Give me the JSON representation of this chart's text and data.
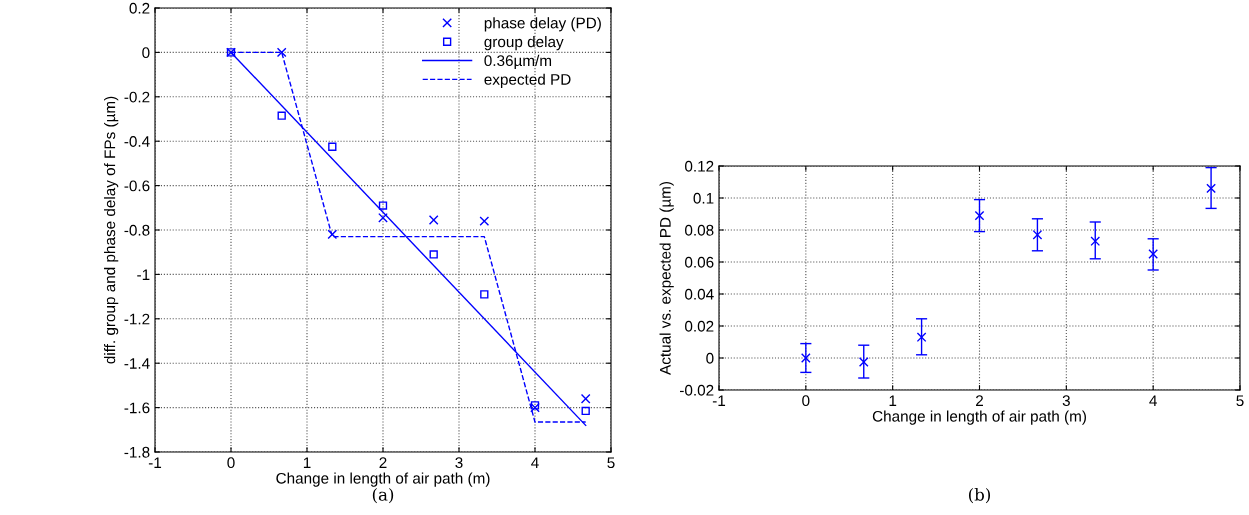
{
  "chart_data": [
    {
      "type": "scatter",
      "xlabel": "Change in length of air path (m)",
      "ylabel": "diff. group and phase delay of FPs (µm)",
      "xlim": [
        -1,
        5
      ],
      "xticks": [
        -1,
        0,
        1,
        2,
        3,
        4,
        5
      ],
      "ylim": [
        -1.8,
        0.2
      ],
      "yticks": [
        -1.8,
        -1.6,
        -1.4,
        -1.2,
        -1,
        -0.8,
        -0.6,
        -0.4,
        -0.2,
        0,
        0.2
      ],
      "grid": true,
      "legend": "top right",
      "annotations": [
        "(a)"
      ],
      "series": [
        {
          "name": "phase delay (PD)",
          "marker": "cross",
          "color": "#0000ff",
          "x": [
            0,
            0.667,
            1.333,
            2,
            2.667,
            3.333,
            4,
            4.667
          ],
          "values": [
            0,
            0,
            -0.82,
            -0.745,
            -0.755,
            -0.76,
            -1.6,
            -1.56
          ]
        },
        {
          "name": "group delay",
          "marker": "square",
          "color": "#0000ff",
          "x": [
            0,
            0.667,
            1.333,
            2,
            2.667,
            3.333,
            4,
            4.667
          ],
          "values": [
            0,
            -0.285,
            -0.425,
            -0.69,
            -0.91,
            -1.09,
            -1.59,
            -1.615
          ]
        },
        {
          "name": "0.36µm/m",
          "type": "line",
          "line_style": "solid",
          "color": "#0000ff",
          "x": [
            0,
            4.667
          ],
          "values": [
            0,
            -1.68
          ]
        },
        {
          "name": "expected PD",
          "type": "line",
          "line_style": "dashed",
          "color": "#0000ff",
          "x": [
            0,
            0.667,
            1.333,
            3.333,
            4,
            4.667
          ],
          "values": [
            0,
            0,
            -0.83,
            -0.83,
            -1.665,
            -1.665
          ]
        }
      ]
    },
    {
      "type": "scatter",
      "xlabel": "Change in length of air path (m)",
      "ylabel": "Actual vs. expected PD (µm)",
      "xlim": [
        -1,
        5
      ],
      "xticks": [
        -1,
        0,
        1,
        2,
        3,
        4,
        5
      ],
      "ylim": [
        -0.02,
        0.12
      ],
      "yticks": [
        -0.02,
        0,
        0.02,
        0.04,
        0.06,
        0.08,
        0.1,
        0.12
      ],
      "grid": true,
      "annotations": [
        "(b)"
      ],
      "series": [
        {
          "marker": "cross",
          "color": "#0000ff",
          "x": [
            0,
            0.667,
            1.333,
            2,
            2.667,
            3.333,
            4,
            4.667
          ],
          "values": [
            0,
            -0.0025,
            0.013,
            0.089,
            0.077,
            0.073,
            0.065,
            0.106
          ],
          "errors": [
            [
              -0.009,
              0.009
            ],
            [
              -0.0125,
              0.008
            ],
            [
              0.002,
              0.0245
            ],
            [
              0.079,
              0.099
            ],
            [
              0.067,
              0.087
            ],
            [
              0.062,
              0.085
            ],
            [
              0.055,
              0.0745
            ],
            [
              0.0935,
              0.119
            ]
          ]
        }
      ]
    }
  ]
}
